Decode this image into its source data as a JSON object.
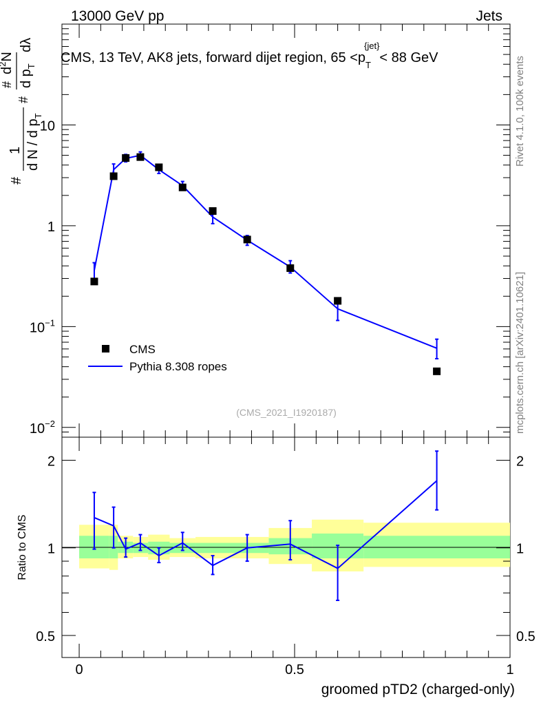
{
  "header": {
    "left": "13000 GeV pp",
    "right": "Jets"
  },
  "side_labels": {
    "rivet": "Rivet 4.1.0,  100k events",
    "mcplots": "mcplots.cern.ch [arXiv:2401.10621]"
  },
  "chart_data": [
    {
      "type": "line",
      "panel": "main",
      "title_parts": {
        "prefix": "CMS, 13 TeV, AK8 jets, forward dijet region, 65 <p",
        "sub": "T",
        "sup": "{jet}",
        "suffix": "< 88 GeV"
      },
      "watermark": "(CMS_2021_I1920187)",
      "ylabel_parts": {
        "hash_left": "#",
        "one": "1",
        "denominator": "d N / d p",
        "denominator_sub": "T",
        "hash_mid": "#",
        "mid": "d p",
        "mid_sub": "T",
        "hash_num": "#",
        "numerator": "d",
        "numerator_sup": "2",
        "numerator_end": "N",
        "lambda": "dλ"
      },
      "yscale": "log",
      "ylim": [
        0.008,
        100
      ],
      "xlim": [
        -0.04,
        1.0
      ],
      "y_ticks": [
        {
          "value": 0.01,
          "base": "10",
          "exp": "−2"
        },
        {
          "value": 0.1,
          "base": "10",
          "exp": "−1"
        },
        {
          "value": 1,
          "base": "1",
          "exp": ""
        },
        {
          "value": 10,
          "base": "10",
          "exp": ""
        }
      ],
      "legend": {
        "position": "lower-left",
        "entries": [
          {
            "label": "CMS",
            "color": "#000000",
            "marker": "square"
          },
          {
            "label": "Pythia 8.308 ropes",
            "color": "#0000ff",
            "marker": "line"
          }
        ]
      },
      "series": [
        {
          "name": "CMS",
          "color": "#000000",
          "x": [
            0.035,
            0.08,
            0.108,
            0.142,
            0.185,
            0.24,
            0.31,
            0.39,
            0.49,
            0.6,
            0.83
          ],
          "y": [
            0.28,
            3.1,
            4.7,
            4.8,
            3.8,
            2.4,
            1.4,
            0.73,
            0.38,
            0.18,
            0.036
          ]
        },
        {
          "name": "Pythia 8.308 ropes",
          "color": "#0000ff",
          "x": [
            0.035,
            0.08,
            0.108,
            0.142,
            0.185,
            0.24,
            0.31,
            0.39,
            0.49,
            0.6,
            0.83
          ],
          "y": [
            0.36,
            3.6,
            4.65,
            5.0,
            3.6,
            2.5,
            1.22,
            0.72,
            0.39,
            0.15,
            0.061
          ],
          "err_low": [
            0.27,
            3.0,
            4.3,
            4.6,
            3.3,
            2.3,
            1.05,
            0.64,
            0.34,
            0.115,
            0.048
          ],
          "err_high": [
            0.43,
            4.1,
            5.1,
            5.4,
            3.95,
            2.75,
            1.38,
            0.8,
            0.45,
            0.18,
            0.075
          ]
        }
      ]
    },
    {
      "type": "line",
      "panel": "ratio",
      "ylabel": "Ratio to CMS",
      "xlabel": "groomed pTD2 (charged-only)",
      "yscale": "log",
      "ylim": [
        0.42,
        2.4
      ],
      "xlim": [
        -0.04,
        1.0
      ],
      "x_ticks": [
        {
          "value": 0,
          "label": "0"
        },
        {
          "value": 0.5,
          "label": "0.5"
        },
        {
          "value": 1,
          "label": "1"
        }
      ],
      "y_ticks": [
        {
          "value": 0.5,
          "label": "0.5"
        },
        {
          "value": 1,
          "label": "1"
        },
        {
          "value": 2,
          "label": "2"
        }
      ],
      "bands": {
        "colors": {
          "yellow": "#ffff99",
          "green": "#99ff99"
        },
        "bins": [
          {
            "x0": 0.0,
            "x1": 0.07,
            "yellow": [
              0.85,
              1.2
            ],
            "green": [
              0.92,
              1.1
            ]
          },
          {
            "x0": 0.07,
            "x1": 0.09,
            "yellow": [
              0.84,
              1.2
            ],
            "green": [
              0.92,
              1.1
            ]
          },
          {
            "x0": 0.09,
            "x1": 0.125,
            "yellow": [
              0.92,
              1.1
            ],
            "green": [
              0.96,
              1.05
            ]
          },
          {
            "x0": 0.125,
            "x1": 0.16,
            "yellow": [
              0.93,
              1.09
            ],
            "green": [
              0.96,
              1.04
            ]
          },
          {
            "x0": 0.16,
            "x1": 0.21,
            "yellow": [
              0.91,
              1.11
            ],
            "green": [
              0.95,
              1.05
            ]
          },
          {
            "x0": 0.21,
            "x1": 0.27,
            "yellow": [
              0.93,
              1.08
            ],
            "green": [
              0.96,
              1.04
            ]
          },
          {
            "x0": 0.27,
            "x1": 0.44,
            "yellow": [
              0.92,
              1.09
            ],
            "green": [
              0.96,
              1.04
            ]
          },
          {
            "x0": 0.44,
            "x1": 0.54,
            "yellow": [
              0.88,
              1.17
            ],
            "green": [
              0.95,
              1.08
            ]
          },
          {
            "x0": 0.54,
            "x1": 0.66,
            "yellow": [
              0.83,
              1.25
            ],
            "green": [
              0.92,
              1.12
            ]
          },
          {
            "x0": 0.66,
            "x1": 1.0,
            "yellow": [
              0.86,
              1.22
            ],
            "green": [
              0.92,
              1.1
            ]
          }
        ]
      },
      "series": [
        {
          "name": "Pythia 8.308 ropes / CMS",
          "color": "#0000ff",
          "x": [
            0.035,
            0.08,
            0.108,
            0.142,
            0.185,
            0.24,
            0.31,
            0.39,
            0.49,
            0.6,
            0.83
          ],
          "y": [
            1.27,
            1.19,
            0.99,
            1.04,
            0.94,
            1.04,
            0.87,
            1.0,
            1.03,
            0.85,
            1.7
          ],
          "err_low": [
            0.99,
            1.0,
            0.93,
            0.98,
            0.89,
            0.98,
            0.81,
            0.9,
            0.91,
            0.66,
            1.35
          ],
          "err_high": [
            1.55,
            1.38,
            1.08,
            1.11,
            1.0,
            1.13,
            0.94,
            1.11,
            1.24,
            1.02,
            2.15
          ]
        }
      ]
    }
  ]
}
